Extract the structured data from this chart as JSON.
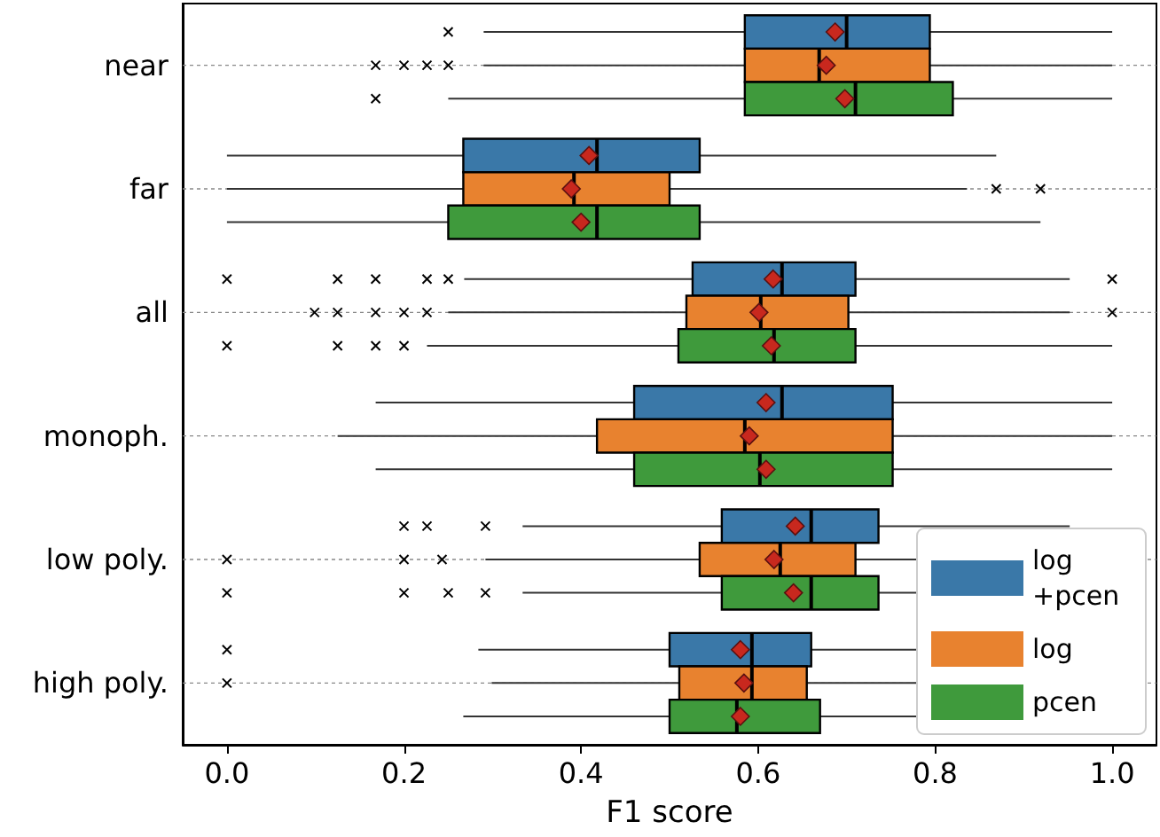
{
  "chart_data": {
    "type": "box",
    "orientation": "horizontal",
    "xlabel": "F1 score",
    "categories": [
      "near",
      "far",
      "all",
      "monoph.",
      "low poly.",
      "high poly."
    ],
    "xlim": [
      -0.05,
      1.05
    ],
    "xticks": [
      {
        "value": 0,
        "label": "0.0"
      },
      {
        "value": 0.2,
        "label": "0.2"
      },
      {
        "value": 0.4,
        "label": "0.4"
      },
      {
        "value": 0.6,
        "label": "0.6"
      },
      {
        "value": 0.8,
        "label": "0.8"
      },
      {
        "value": 1,
        "label": "1.0"
      }
    ],
    "grid": "y",
    "legend": "bottom right",
    "marker": "diamond",
    "series": [
      {
        "name": "log +pcen",
        "color": "#3a78a8",
        "boxes": [
          {
            "low": 0.29,
            "q1": 0.585,
            "median": 0.7,
            "q3": 0.794,
            "high": 1.0,
            "mean": 0.687,
            "outliers": [
              0.25
            ]
          },
          {
            "low": 0.0,
            "q1": 0.267,
            "median": 0.418,
            "q3": 0.534,
            "high": 0.869,
            "mean": 0.409
          },
          {
            "low": 0.268,
            "q1": 0.526,
            "median": 0.627,
            "q3": 0.71,
            "high": 0.952,
            "mean": 0.617,
            "outliers": [
              0.0,
              0.125,
              0.168,
              0.226,
              0.25,
              1.0
            ]
          },
          {
            "low": 0.168,
            "q1": 0.46,
            "median": 0.627,
            "q3": 0.752,
            "high": 1.0,
            "mean": 0.609
          },
          {
            "low": 0.334,
            "q1": 0.559,
            "median": 0.66,
            "q3": 0.736,
            "high": 0.952,
            "mean": 0.642,
            "outliers": [
              0.2,
              0.226,
              0.292
            ]
          },
          {
            "low": 0.284,
            "q1": 0.5,
            "median": 0.593,
            "q3": 0.66,
            "high": 0.883,
            "mean": 0.58,
            "outliers": [
              0.0
            ]
          }
        ]
      },
      {
        "name": "log",
        "color": "#e8822f",
        "boxes": [
          {
            "low": 0.29,
            "q1": 0.585,
            "median": 0.669,
            "q3": 0.794,
            "high": 1.0,
            "mean": 0.677,
            "outliers": [
              0.168,
              0.2,
              0.226,
              0.25
            ]
          },
          {
            "low": 0.0,
            "q1": 0.267,
            "median": 0.392,
            "q3": 0.5,
            "high": 0.836,
            "mean": 0.389,
            "outliers": [
              0.869,
              0.919
            ]
          },
          {
            "low": 0.25,
            "q1": 0.519,
            "median": 0.603,
            "q3": 0.702,
            "high": 0.952,
            "mean": 0.601,
            "outliers": [
              0.099,
              0.125,
              0.168,
              0.2,
              0.226,
              1.0
            ]
          },
          {
            "low": 0.125,
            "q1": 0.418,
            "median": 0.585,
            "q3": 0.752,
            "high": 1.0,
            "mean": 0.59
          },
          {
            "low": 0.292,
            "q1": 0.534,
            "median": 0.625,
            "q3": 0.71,
            "high": 0.952,
            "mean": 0.618,
            "outliers": [
              0.0,
              0.2,
              0.243
            ]
          },
          {
            "low": 0.299,
            "q1": 0.511,
            "median": 0.593,
            "q3": 0.655,
            "high": 0.883,
            "mean": 0.584,
            "outliers": [
              0.0
            ]
          }
        ]
      },
      {
        "name": "pcen",
        "color": "#3f9a3c",
        "boxes": [
          {
            "low": 0.25,
            "q1": 0.585,
            "median": 0.71,
            "q3": 0.82,
            "high": 1.0,
            "mean": 0.698,
            "outliers": [
              0.168
            ]
          },
          {
            "low": 0.0,
            "q1": 0.25,
            "median": 0.418,
            "q3": 0.534,
            "high": 0.919,
            "mean": 0.4
          },
          {
            "low": 0.226,
            "q1": 0.51,
            "median": 0.618,
            "q3": 0.71,
            "high": 1.0,
            "mean": 0.615,
            "outliers": [
              0.0,
              0.125,
              0.168,
              0.2
            ]
          },
          {
            "low": 0.168,
            "q1": 0.46,
            "median": 0.602,
            "q3": 0.752,
            "high": 1.0,
            "mean": 0.609
          },
          {
            "low": 0.334,
            "q1": 0.559,
            "median": 0.66,
            "q3": 0.736,
            "high": 0.952,
            "mean": 0.64,
            "outliers": [
              0.0,
              0.2,
              0.25,
              0.292
            ]
          },
          {
            "low": 0.267,
            "q1": 0.5,
            "median": 0.576,
            "q3": 0.67,
            "high": 0.883,
            "mean": 0.58
          }
        ]
      }
    ]
  }
}
